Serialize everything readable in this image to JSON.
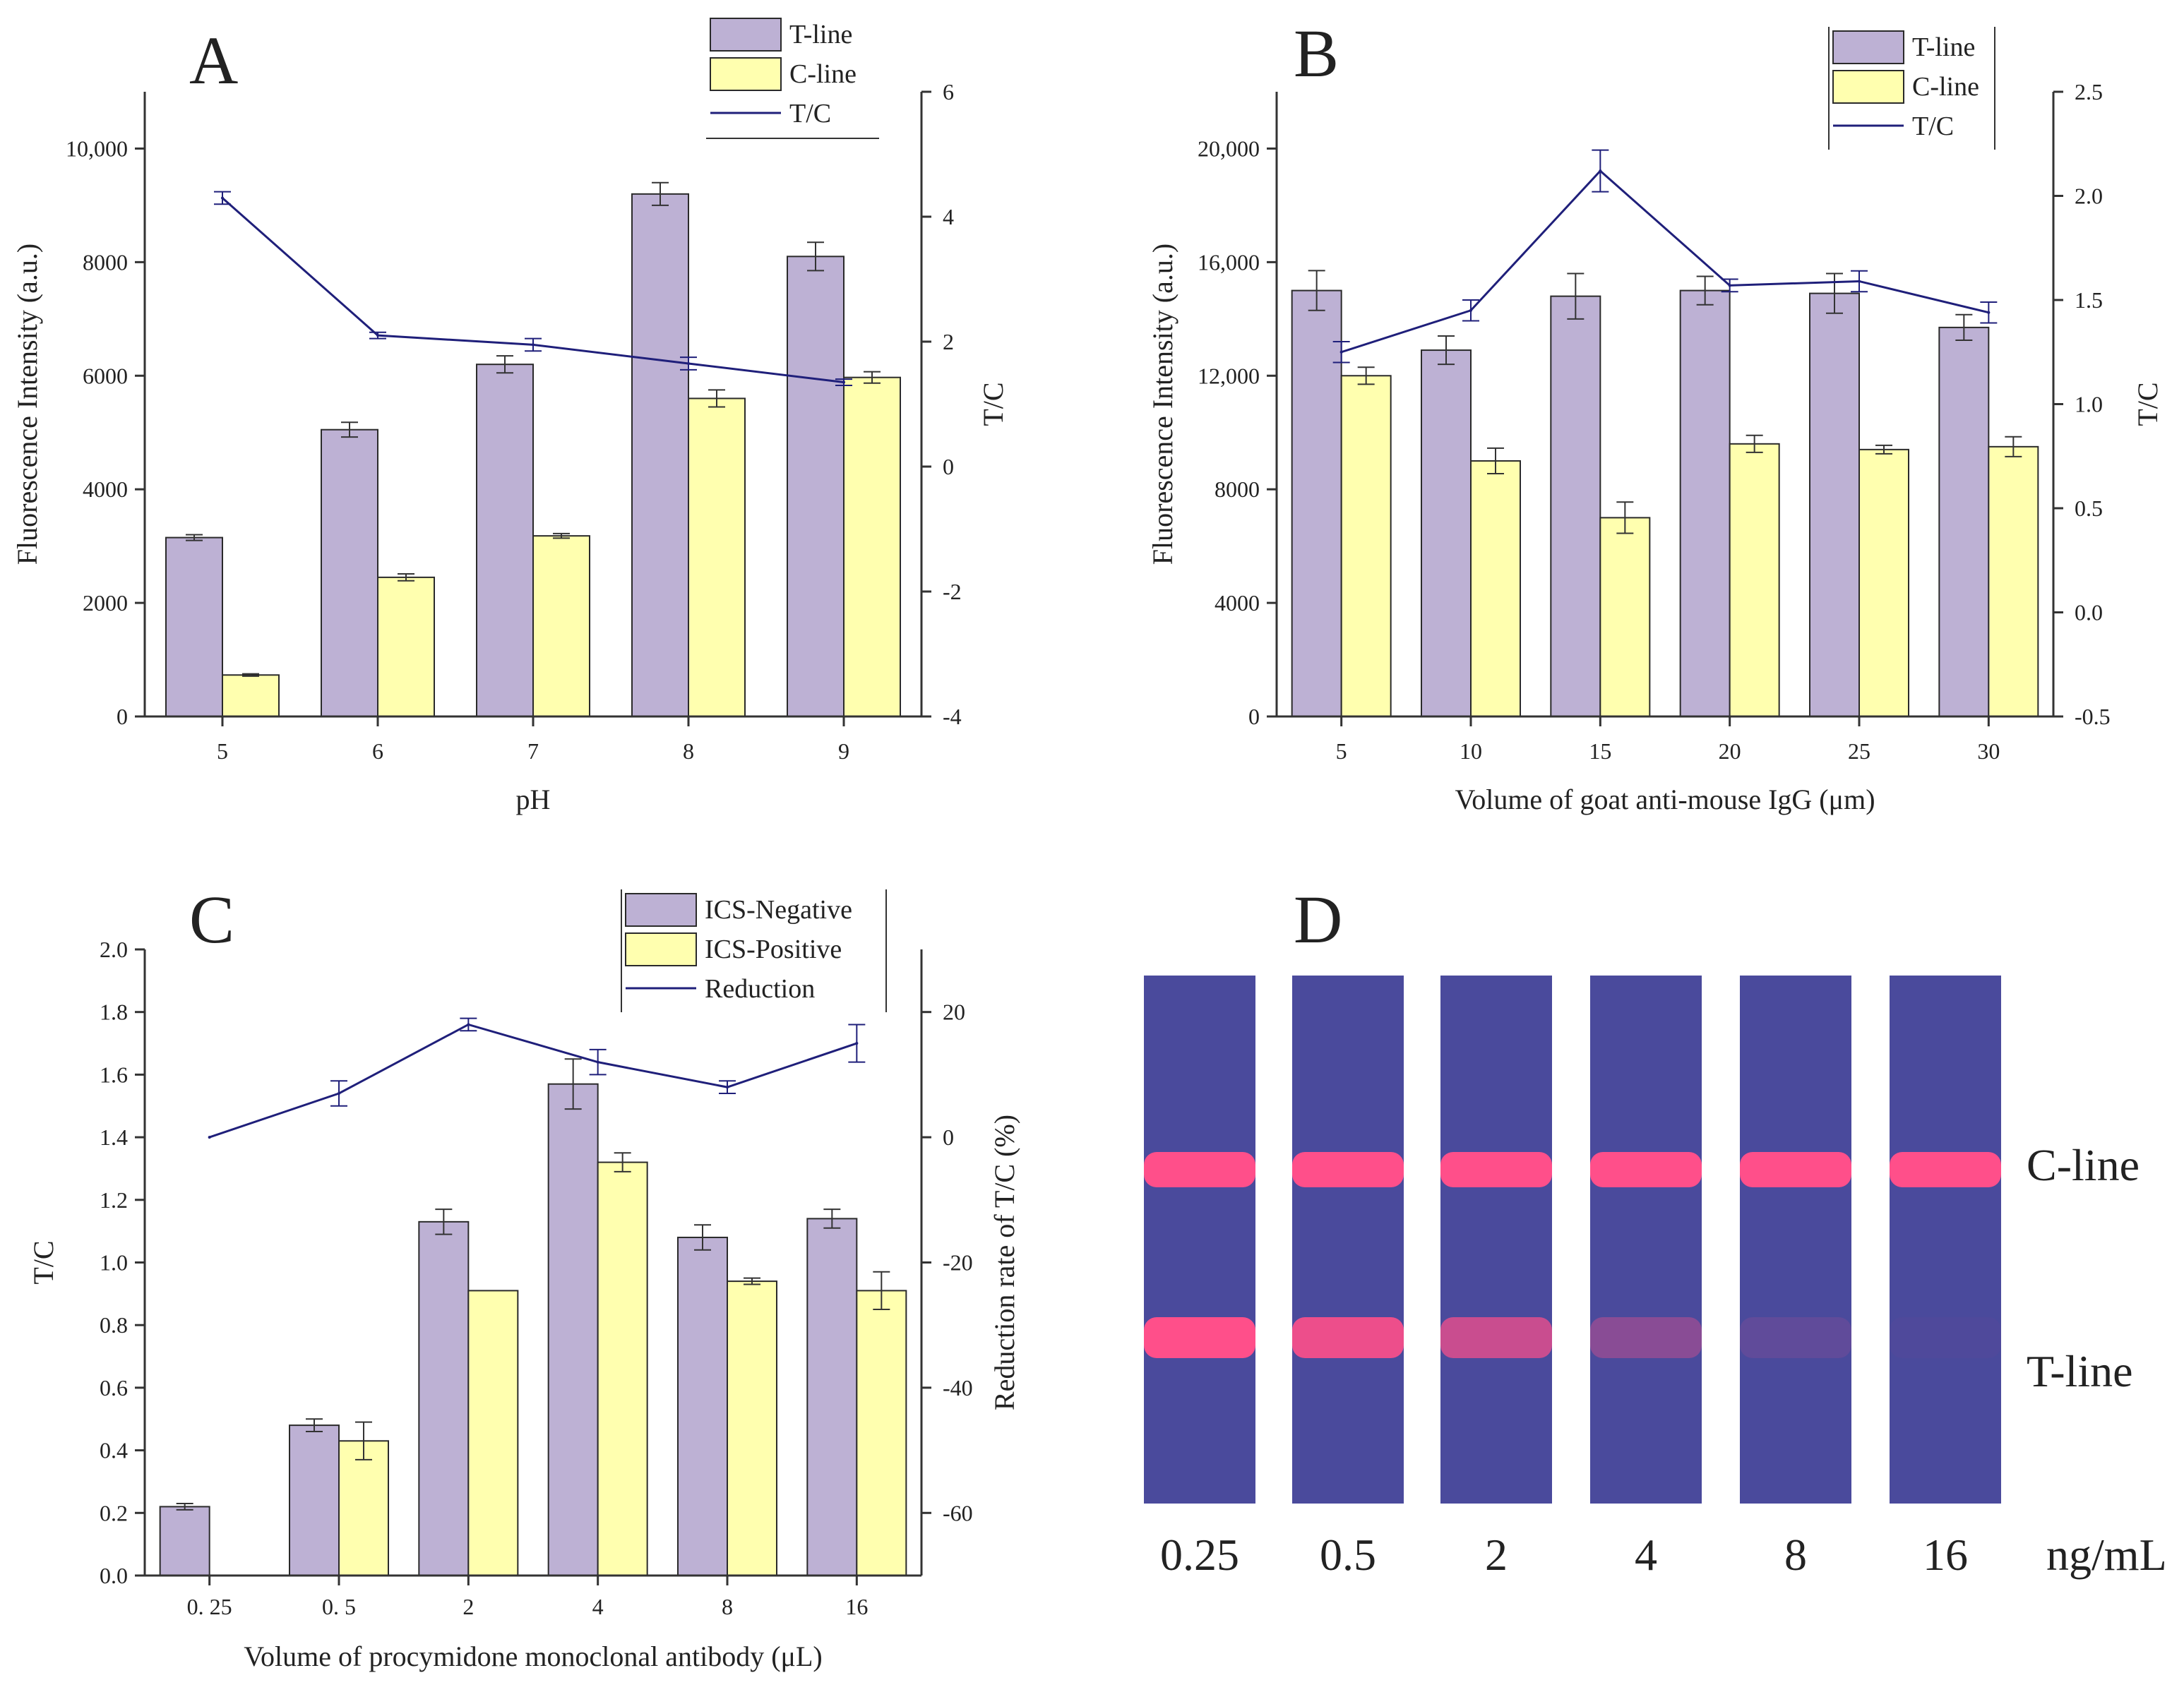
{
  "colors": {
    "bar_primary": "#bdb1d4",
    "bar_secondary": "#ffffaf",
    "bar_edge": "#2a2a2a",
    "line": "#1f1f7a",
    "axis": "#333333",
    "strip_bg": "#4a4a9c",
    "band": "#ff4f8a"
  },
  "chart_data": [
    {
      "panel": "A",
      "type": "bar",
      "title": "",
      "categories": [
        "5",
        "6",
        "7",
        "8",
        "9"
      ],
      "xlabel": "pH",
      "ylabel": "Fluorescence Intensity (a.u.)",
      "ylim": [
        0,
        11000
      ],
      "yticks": [
        0,
        2000,
        4000,
        6000,
        8000,
        10000
      ],
      "ytick_labels": [
        "0",
        "2000",
        "4000",
        "6000",
        "8000",
        "10,000"
      ],
      "y2label": "T/C",
      "y2lim": [
        -4,
        6
      ],
      "y2ticks": [
        -4,
        -2,
        0,
        2,
        4,
        6
      ],
      "y2tick_labels": [
        "-4",
        "-2",
        "0",
        "2",
        "4",
        "6"
      ],
      "series": [
        {
          "name": "T-line",
          "values": [
            3150,
            5050,
            6200,
            9200,
            8100
          ],
          "errors": [
            50,
            130,
            150,
            200,
            250
          ]
        },
        {
          "name": "C-line",
          "values": [
            730,
            2450,
            3180,
            5600,
            5970
          ],
          "errors": [
            20,
            60,
            40,
            150,
            100
          ]
        }
      ],
      "line": {
        "name": "T/C",
        "values": [
          4.3,
          2.1,
          1.95,
          1.65,
          1.35
        ],
        "errors": [
          0.1,
          0.05,
          0.1,
          0.1,
          0.05
        ]
      },
      "legend": [
        "T-line",
        "C-line",
        "T/C"
      ]
    },
    {
      "panel": "B",
      "type": "bar",
      "title": "",
      "categories": [
        "5",
        "10",
        "15",
        "20",
        "25",
        "30"
      ],
      "xlabel": "Volume of goat anti-mouse IgG (μm)",
      "ylabel": "Fluorescence Intensity (a.u.)",
      "ylim": [
        0,
        22000
      ],
      "yticks": [
        0,
        4000,
        8000,
        12000,
        16000,
        20000
      ],
      "ytick_labels": [
        "0",
        "4000",
        "8000",
        "12,000",
        "16,000",
        "20,000"
      ],
      "y2label": "T/C",
      "y2lim": [
        -0.5,
        2.5
      ],
      "y2ticks": [
        -0.5,
        0.0,
        0.5,
        1.0,
        1.5,
        2.0,
        2.5
      ],
      "y2tick_labels": [
        "-0.5",
        "0.0",
        "0.5",
        "1.0",
        "1.5",
        "2.0",
        "2.5"
      ],
      "series": [
        {
          "name": "T-line",
          "values": [
            15000,
            12900,
            14800,
            15000,
            14900,
            13700
          ],
          "errors": [
            700,
            500,
            800,
            500,
            700,
            450
          ]
        },
        {
          "name": "C-line",
          "values": [
            12000,
            9000,
            7000,
            9600,
            9400,
            9500
          ],
          "errors": [
            300,
            450,
            550,
            300,
            150,
            350
          ]
        }
      ],
      "line": {
        "name": "T/C",
        "values": [
          1.25,
          1.45,
          2.12,
          1.57,
          1.59,
          1.44
        ],
        "errors": [
          0.05,
          0.05,
          0.1,
          0.03,
          0.05,
          0.05
        ]
      },
      "legend": [
        "T-line",
        "C-line",
        "T/C"
      ]
    },
    {
      "panel": "C",
      "type": "bar",
      "title": "",
      "categories": [
        "0. 25",
        "0. 5",
        "2",
        "4",
        "8",
        "16"
      ],
      "xlabel": "Volume of procymidone monoclonal antibody (μL)",
      "ylabel": "T/C",
      "ylim": [
        0,
        2.0
      ],
      "yticks": [
        0.0,
        0.2,
        0.4,
        0.6,
        0.8,
        1.0,
        1.2,
        1.4,
        1.6,
        1.8,
        2.0
      ],
      "ytick_labels": [
        "0.0",
        "0.2",
        "0.4",
        "0.6",
        "0.8",
        "1.0",
        "1.2",
        "1.4",
        "1.6",
        "1.8",
        "2.0"
      ],
      "y2label": "Reduction rate of T/C (%)",
      "y2lim": [
        -70,
        30
      ],
      "y2ticks": [
        -60,
        -40,
        -20,
        0,
        20
      ],
      "y2tick_labels": [
        "-60",
        "-40",
        "-20",
        "0",
        "20"
      ],
      "series": [
        {
          "name": "ICS-Negative",
          "values": [
            0.22,
            0.48,
            1.13,
            1.57,
            1.08,
            1.14
          ],
          "errors": [
            0.01,
            0.02,
            0.04,
            0.08,
            0.04,
            0.03
          ]
        },
        {
          "name": "ICS-Positive",
          "values": [
            0,
            0.43,
            0.91,
            1.32,
            0.94,
            0.91
          ],
          "errors": [
            0,
            0.06,
            0,
            0.03,
            0.01,
            0.06
          ]
        }
      ],
      "line": {
        "name": "Reduction",
        "values": [
          0,
          7,
          18,
          12,
          8,
          15
        ],
        "errors": [
          0,
          2,
          1,
          2,
          1,
          3
        ]
      },
      "legend": [
        "ICS-Negative",
        "ICS-Positive",
        "Reduction"
      ]
    }
  ],
  "panels": {
    "a": {
      "letter": "A"
    },
    "b": {
      "letter": "B"
    },
    "c": {
      "letter": "C"
    },
    "d": {
      "letter": "D",
      "line_labels": {
        "c": "C-line",
        "t": "T-line"
      },
      "unit": "ng/mL",
      "strips": [
        {
          "concentration": "0.25",
          "t_intensity": 1.0,
          "c_intensity": 1.0
        },
        {
          "concentration": "0.5",
          "t_intensity": 0.9,
          "c_intensity": 1.0
        },
        {
          "concentration": "2",
          "t_intensity": 0.7,
          "c_intensity": 1.0
        },
        {
          "concentration": "4",
          "t_intensity": 0.35,
          "c_intensity": 1.0
        },
        {
          "concentration": "8",
          "t_intensity": 0.12,
          "c_intensity": 1.0
        },
        {
          "concentration": "16",
          "t_intensity": 0.03,
          "c_intensity": 1.0
        }
      ]
    }
  }
}
